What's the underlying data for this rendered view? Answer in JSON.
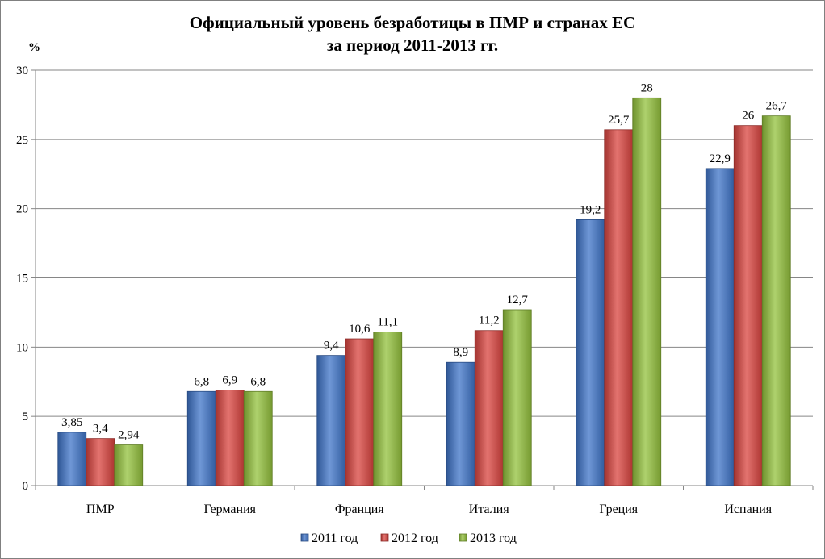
{
  "chart_data": {
    "type": "bar",
    "title": "Официальный уровень безработицы в ПМР и странах ЕС",
    "subtitle": "за период 2011-2013 гг.",
    "ylabel": "%",
    "xlabel": "",
    "ylim": [
      0,
      30
    ],
    "yticks": [
      0,
      5,
      10,
      15,
      20,
      25,
      30
    ],
    "grid": true,
    "legend_position": "bottom",
    "categories": [
      "ПМР",
      "Германия",
      "Франция",
      "Италия",
      "Греция",
      "Испания"
    ],
    "series": [
      {
        "name": "2011 год",
        "color": "#3f74c8",
        "values": [
          3.85,
          6.8,
          9.4,
          8.9,
          19.2,
          22.9
        ],
        "labels": [
          "3,85",
          "6,8",
          "9,4",
          "8,9",
          "19,2",
          "22,9"
        ]
      },
      {
        "name": "2012 год",
        "color": "#d9443f",
        "values": [
          3.4,
          6.9,
          10.6,
          11.2,
          25.7,
          26
        ],
        "labels": [
          "3,4",
          "6,9",
          "10,6",
          "11,2",
          "25,7",
          "26"
        ]
      },
      {
        "name": "2013 год",
        "color": "#93c13c",
        "values": [
          2.94,
          6.8,
          11.1,
          12.7,
          28,
          26.7
        ],
        "labels": [
          "2,94",
          "6,8",
          "11,1",
          "12,7",
          "28",
          "26,7"
        ]
      }
    ]
  }
}
